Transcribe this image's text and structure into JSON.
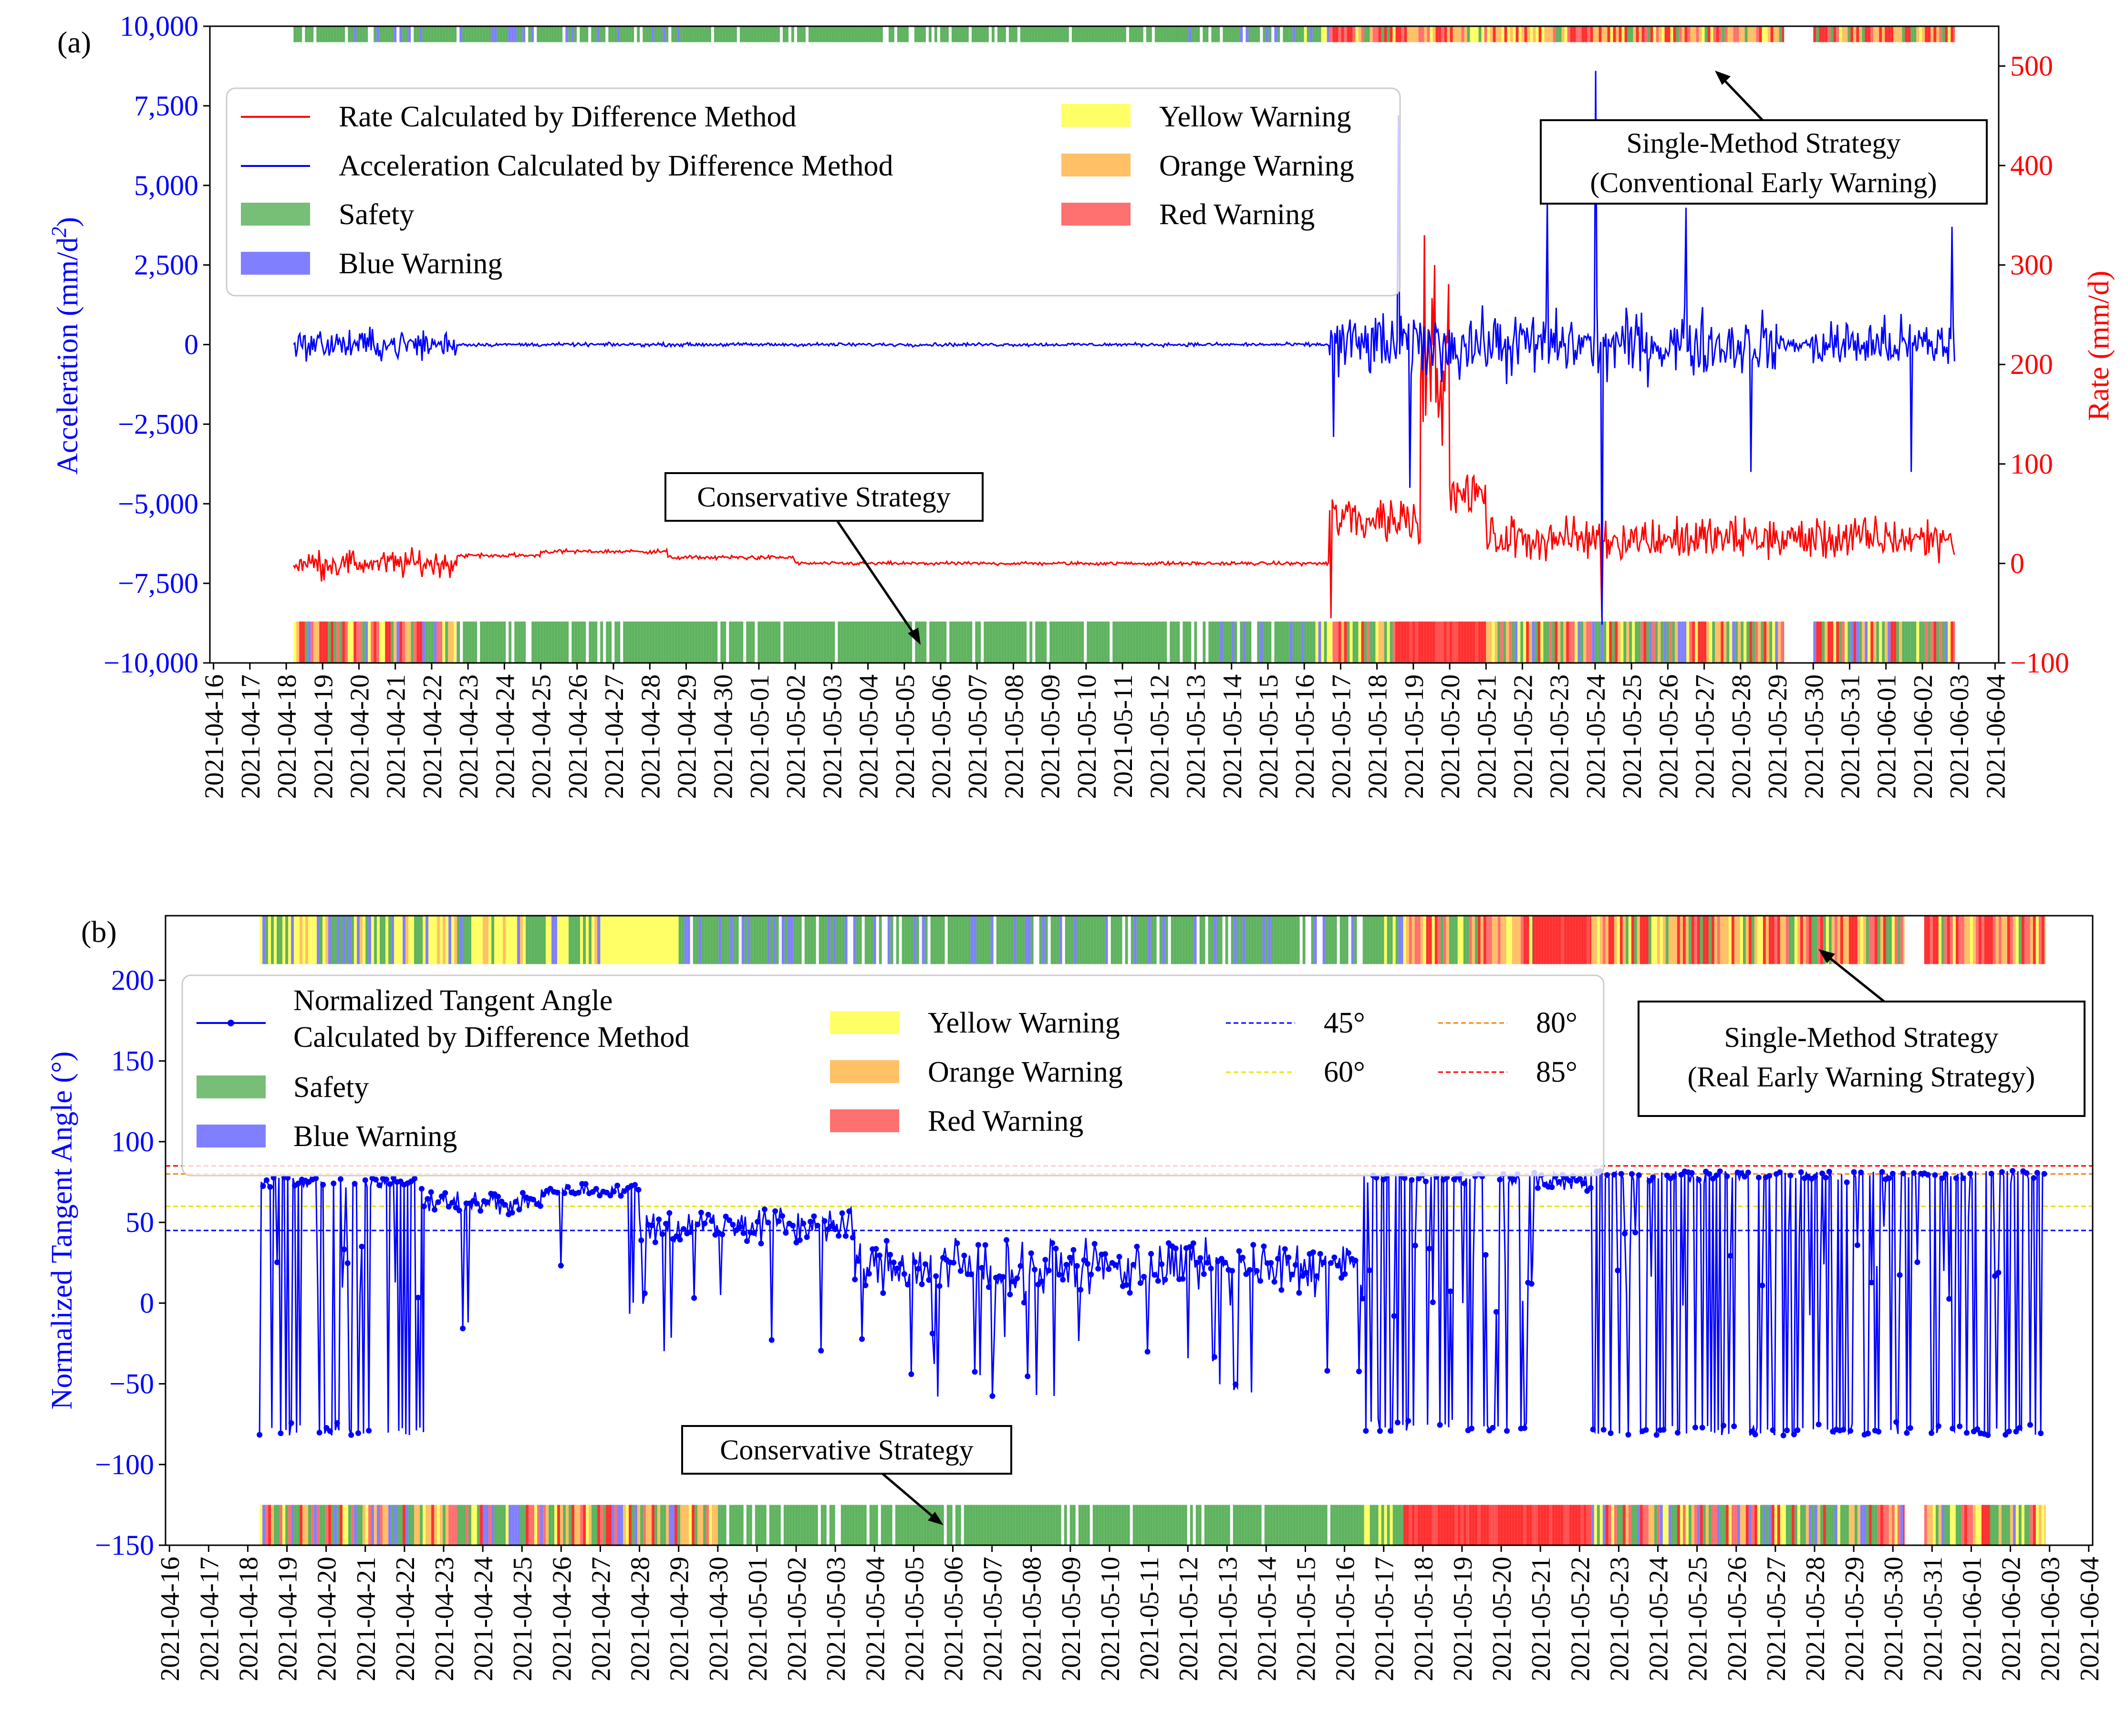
{
  "colors": {
    "blue_line": "#0000ff",
    "red_line": "#ff0000",
    "safety": "#5fb35f",
    "blue_warning": "#8080ff",
    "yellow_warning": "#ffff66",
    "orange_warning": "#ffc066",
    "red_warning": "#ff7070",
    "h45": "#0000ff",
    "h60": "#e6e600",
    "h80": "#ff8000",
    "h85": "#ff0000"
  },
  "chart_data": [
    {
      "panel_label": "(a)",
      "type": "line",
      "title": "",
      "xlabel": "",
      "x_ticks": [
        "2021-04-16",
        "2021-04-17",
        "2021-04-18",
        "2021-04-19",
        "2021-04-20",
        "2021-04-21",
        "2021-04-22",
        "2021-04-23",
        "2021-04-24",
        "2021-04-25",
        "2021-04-26",
        "2021-04-27",
        "2021-04-28",
        "2021-04-29",
        "2021-04-30",
        "2021-05-01",
        "2021-05-02",
        "2021-05-03",
        "2021-05-04",
        "2021-05-05",
        "2021-05-06",
        "2021-05-07",
        "2021-05-08",
        "2021-05-09",
        "2021-05-10",
        "2021-05-11",
        "2021-05-12",
        "2021-05-13",
        "2021-05-14",
        "2021-05-15",
        "2021-05-16",
        "2021-05-17",
        "2021-05-18",
        "2021-05-19",
        "2021-05-20",
        "2021-05-21",
        "2021-05-22",
        "2021-05-23",
        "2021-05-24",
        "2021-05-25",
        "2021-05-26",
        "2021-05-27",
        "2021-05-28",
        "2021-05-29",
        "2021-05-30",
        "2021-05-31",
        "2021-06-01",
        "2021-06-02",
        "2021-06-03",
        "2021-06-04"
      ],
      "xlim_days": [
        -0.1,
        49.1
      ],
      "y_left": {
        "label_text": "Acceleration (mm/d",
        "label_sup": "2",
        "label_end": ")",
        "label_italic_d": "d",
        "ylim": [
          -10000,
          10000
        ],
        "ticks": [
          -10000,
          -7500,
          -5000,
          -2500,
          0,
          2500,
          5000,
          7500,
          10000
        ],
        "tick_labels": [
          "−10,000",
          "−7,500",
          "−5,000",
          "−2,500",
          "0",
          "2,500",
          "5,000",
          "7,500",
          "10,000"
        ]
      },
      "y_right": {
        "label": "Rate (mm/d)",
        "ylim": [
          -100,
          540
        ],
        "ticks": [
          -100,
          0,
          100,
          200,
          300,
          400,
          500
        ],
        "tick_labels": [
          "−100",
          "0",
          "100",
          "200",
          "300",
          "400",
          "500"
        ]
      },
      "data_start_day": 2.2,
      "data_end_day": 47.9,
      "series": [
        {
          "name": "Rate Calculated by Difference Method",
          "axis": "right",
          "color": "red",
          "segments": [
            {
              "start": 2.2,
              "end": 6.7,
              "mean": 0,
              "amp": 20
            },
            {
              "start": 6.7,
              "end": 9.0,
              "mean": 8,
              "amp": 3
            },
            {
              "start": 9.0,
              "end": 12.5,
              "mean": 12,
              "amp": 3
            },
            {
              "start": 12.5,
              "end": 16.0,
              "mean": 6,
              "amp": 3
            },
            {
              "start": 16.0,
              "end": 30.7,
              "mean": 0,
              "amp": 2.5
            },
            {
              "start": 30.7,
              "end": 33.2,
              "mean": 45,
              "amp": 40
            },
            {
              "start": 33.2,
              "end": 34.0,
              "mean": 200,
              "amp": 100
            },
            {
              "start": 34.0,
              "end": 35.0,
              "mean": 70,
              "amp": 30
            },
            {
              "start": 35.0,
              "end": 47.9,
              "mean": 25,
              "amp": 32
            }
          ],
          "spikes": [
            {
              "day": 33.3,
              "value": 330
            },
            {
              "day": 33.6,
              "value": 300
            },
            {
              "day": 30.75,
              "value": -55
            },
            {
              "day": 38.2,
              "value": -55
            }
          ]
        },
        {
          "name": "Acceleration Calculated by Difference Method",
          "axis": "left",
          "color": "blue",
          "segments": [
            {
              "start": 2.2,
              "end": 6.7,
              "mean": 0,
              "amp": 700
            },
            {
              "start": 6.7,
              "end": 30.7,
              "mean": 0,
              "amp": 80
            },
            {
              "start": 30.7,
              "end": 43.0,
              "mean": 0,
              "amp": 1500
            },
            {
              "start": 43.0,
              "end": 44.0,
              "mean": 0,
              "amp": 400
            },
            {
              "start": 44.0,
              "end": 47.9,
              "mean": 0,
              "amp": 1200
            }
          ],
          "spikes": [
            {
              "day": 32.6,
              "value": 7200
            },
            {
              "day": 32.9,
              "value": -4500
            },
            {
              "day": 38.0,
              "value": 8600
            },
            {
              "day": 38.2,
              "value": -8800
            },
            {
              "day": 30.8,
              "value": -2900
            },
            {
              "day": 42.3,
              "value": -4000
            },
            {
              "day": 46.7,
              "value": -4000
            },
            {
              "day": 47.8,
              "value": 3700
            },
            {
              "day": 40.5,
              "value": 4300
            },
            {
              "day": 36.7,
              "value": 4500
            }
          ]
        }
      ],
      "warning_bands": {
        "top": {
          "name": "Single-Method Strategy (Conventional Early Warning)",
          "y_range": [
            9500,
            11000
          ]
        },
        "bottom": {
          "name": "Conservative Strategy",
          "y_range": [
            -10000,
            -8700
          ]
        },
        "segments_top": [
          {
            "start": 2.2,
            "end": 12.9,
            "class": "safety_blue"
          },
          {
            "start": 12.9,
            "end": 26.5,
            "class": "safety"
          },
          {
            "start": 26.5,
            "end": 29.6,
            "class": "safety_blue"
          },
          {
            "start": 29.6,
            "end": 30.7,
            "class": "safety_yellow"
          },
          {
            "start": 30.7,
            "end": 43.2,
            "class": "red_mix"
          },
          {
            "start": 43.2,
            "end": 44.0,
            "class": "gap"
          },
          {
            "start": 44.0,
            "end": 47.9,
            "class": "red_mix"
          }
        ],
        "segments_bottom": [
          {
            "start": 2.2,
            "end": 6.7,
            "class": "mixed_all"
          },
          {
            "start": 6.7,
            "end": 26.5,
            "class": "safety"
          },
          {
            "start": 26.5,
            "end": 29.6,
            "class": "safety_blue"
          },
          {
            "start": 29.6,
            "end": 30.7,
            "class": "safety_yellow"
          },
          {
            "start": 30.7,
            "end": 32.5,
            "class": "red_mix"
          },
          {
            "start": 32.5,
            "end": 35.0,
            "class": "red"
          },
          {
            "start": 35.0,
            "end": 43.2,
            "class": "mixed_all"
          },
          {
            "start": 43.2,
            "end": 44.0,
            "class": "gap"
          },
          {
            "start": 44.0,
            "end": 47.9,
            "class": "mixed_all"
          }
        ]
      },
      "legend": {
        "col1": [
          "Rate Calculated by Difference Method",
          "Acceleration Calculated by Difference Method",
          "Safety",
          "Blue Warning"
        ],
        "col2": [
          "Yellow Warning",
          "Orange Warning",
          "Red Warning"
        ]
      },
      "annotations": {
        "top_label_line1": "Single-Method Strategy",
        "top_label_line2": "(Conventional Early Warning)",
        "bottom_label": "Conservative Strategy"
      }
    },
    {
      "panel_label": "(b)",
      "type": "line",
      "title": "",
      "xlabel": "",
      "x_ticks": [
        "2021-04-16",
        "2021-04-17",
        "2021-04-18",
        "2021-04-19",
        "2021-04-20",
        "2021-04-21",
        "2021-04-22",
        "2021-04-23",
        "2021-04-24",
        "2021-04-25",
        "2021-04-26",
        "2021-04-27",
        "2021-04-28",
        "2021-04-29",
        "2021-04-30",
        "2021-05-01",
        "2021-05-02",
        "2021-05-03",
        "2021-05-04",
        "2021-05-05",
        "2021-05-06",
        "2021-05-07",
        "2021-05-08",
        "2021-05-09",
        "2021-05-10",
        "2021-05-11",
        "2021-05-12",
        "2021-05-13",
        "2021-05-14",
        "2021-05-15",
        "2021-05-16",
        "2021-05-17",
        "2021-05-18",
        "2021-05-19",
        "2021-05-20",
        "2021-05-21",
        "2021-05-22",
        "2021-05-23",
        "2021-05-24",
        "2021-05-25",
        "2021-05-26",
        "2021-05-27",
        "2021-05-28",
        "2021-05-29",
        "2021-05-30",
        "2021-05-31",
        "2021-06-01",
        "2021-06-02",
        "2021-06-03",
        "2021-06-04"
      ],
      "xlim_days": [
        -0.1,
        49.1
      ],
      "y_left": {
        "label": "Normalized Tangent Angle (°)",
        "ylim": [
          -150,
          240
        ],
        "ticks": [
          -150,
          -100,
          -50,
          0,
          50,
          100,
          150,
          200
        ],
        "tick_labels": [
          "−150",
          "−100",
          "−50",
          "0",
          "50",
          "100",
          "150",
          "200"
        ]
      },
      "thresholds": [
        {
          "label": "45°",
          "value": 45,
          "color_key": "h45"
        },
        {
          "label": "60°",
          "value": 60,
          "color_key": "h60"
        },
        {
          "label": "80°",
          "value": 80,
          "color_key": "h80"
        },
        {
          "label": "85°",
          "value": 85,
          "color_key": "h85"
        }
      ],
      "series": [
        {
          "name": "Normalized Tangent Angle Calculated by Difference Method",
          "color": "blue",
          "segments": [
            {
              "start": 2.3,
              "end": 6.5,
              "mode": "bimodal",
              "high": 78,
              "low": -82
            },
            {
              "start": 6.5,
              "end": 9.5,
              "mode": "band",
              "mean": 62,
              "amp": 12
            },
            {
              "start": 9.5,
              "end": 12.0,
              "mode": "band",
              "mean": 70,
              "amp": 6
            },
            {
              "start": 12.0,
              "end": 17.5,
              "mode": "band",
              "mean": 48,
              "amp": 18
            },
            {
              "start": 17.5,
              "end": 30.5,
              "mode": "band",
              "mean": 22,
              "amp": 25
            },
            {
              "start": 30.5,
              "end": 34.8,
              "mode": "bimodal",
              "high": 80,
              "low": -80
            },
            {
              "start": 34.8,
              "end": 36.3,
              "mode": "band",
              "mean": 75,
              "amp": 10
            },
            {
              "start": 36.3,
              "end": 47.9,
              "mode": "bimodal",
              "high": 82,
              "low": -82
            }
          ]
        }
      ],
      "warning_bands": {
        "top": {
          "name": "Single-Method Strategy (Real Early Warning Strategy)",
          "y_range": [
            210,
            240
          ]
        },
        "bottom": {
          "name": "Conservative Strategy",
          "y_range": [
            -150,
            -125
          ]
        },
        "segments_top": [
          {
            "start": 2.3,
            "end": 11.0,
            "class": "yellow_mix"
          },
          {
            "start": 11.0,
            "end": 13.0,
            "class": "yellow"
          },
          {
            "start": 13.0,
            "end": 30.5,
            "class": "safety_blue"
          },
          {
            "start": 30.5,
            "end": 31.5,
            "class": "safety_yellow"
          },
          {
            "start": 31.5,
            "end": 34.8,
            "class": "red_mix"
          },
          {
            "start": 34.8,
            "end": 36.3,
            "class": "red"
          },
          {
            "start": 36.3,
            "end": 44.3,
            "class": "red_mix"
          },
          {
            "start": 44.3,
            "end": 44.8,
            "class": "gap"
          },
          {
            "start": 44.8,
            "end": 47.9,
            "class": "red_mix"
          }
        ],
        "segments_bottom": [
          {
            "start": 2.3,
            "end": 14.0,
            "class": "mixed_all"
          },
          {
            "start": 14.0,
            "end": 30.5,
            "class": "safety"
          },
          {
            "start": 30.5,
            "end": 31.5,
            "class": "safety_yellow"
          },
          {
            "start": 31.5,
            "end": 36.3,
            "class": "red"
          },
          {
            "start": 36.3,
            "end": 44.3,
            "class": "mixed_all"
          },
          {
            "start": 44.3,
            "end": 44.8,
            "class": "gap"
          },
          {
            "start": 44.8,
            "end": 47.9,
            "class": "mixed_all"
          }
        ]
      },
      "legend": {
        "col1_line1": "Normalized Tangent Angle",
        "col1_line2": "Calculated by Difference Method",
        "col1_rest": [
          "Safety",
          "Blue Warning"
        ],
        "col2": [
          "Yellow Warning",
          "Orange Warning",
          "Red Warning"
        ],
        "col3": [
          "45°",
          "60°"
        ],
        "col4": [
          "80°",
          "85°"
        ]
      },
      "annotations": {
        "top_label_line1": "Single-Method Strategy",
        "top_label_line2": "(Real Early Warning Strategy)",
        "bottom_label": "Conservative Strategy"
      }
    }
  ]
}
